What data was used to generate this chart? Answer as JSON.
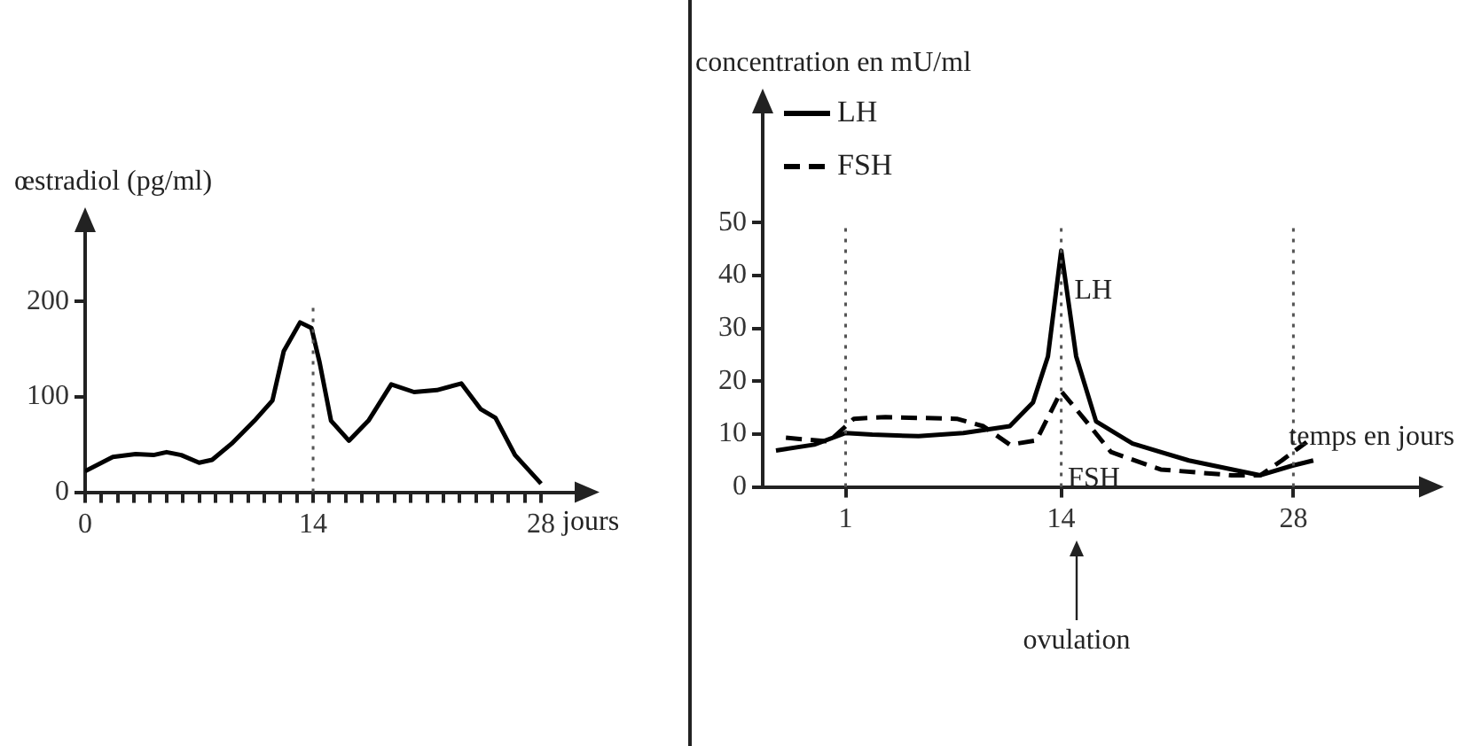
{
  "chart_data": [
    {
      "type": "line",
      "ylabel": "œstradiol (pg/ml)",
      "xlabel": "jours",
      "color": "#000000",
      "x": [
        0,
        1.7,
        3.1,
        4.2,
        5,
        5.9,
        7,
        7.8,
        9,
        10.4,
        11.5,
        12.2,
        13.2,
        13.9,
        14.4,
        15.1,
        16.2,
        17.4,
        18.8,
        20.2,
        21.6,
        23.1,
        24.3,
        25.2,
        26.4,
        28
      ],
      "values": [
        22,
        37,
        40,
        39,
        42,
        39,
        31,
        34,
        51,
        75,
        96,
        148,
        178,
        172,
        136,
        75,
        54,
        75,
        113,
        105,
        107,
        114,
        87,
        78,
        39,
        9
      ],
      "xlim": [
        0,
        30.5
      ],
      "xticks": [
        0,
        {
          "value": 1,
          "label": null
        },
        {
          "value": 2,
          "label": null
        },
        {
          "value": 3,
          "label": null
        },
        {
          "value": 4,
          "label": null
        },
        {
          "value": 5,
          "label": null
        },
        {
          "value": 6,
          "label": null
        },
        {
          "value": 7,
          "label": null
        },
        {
          "value": 8,
          "label": null
        },
        {
          "value": 9,
          "label": null
        },
        {
          "value": 10,
          "label": null
        },
        {
          "value": 11,
          "label": null
        },
        {
          "value": 12,
          "label": null
        },
        {
          "value": 13,
          "label": null
        },
        14,
        {
          "value": 15,
          "label": null
        },
        {
          "value": 16,
          "label": null
        },
        {
          "value": 17,
          "label": null
        },
        {
          "value": 18,
          "label": null
        },
        {
          "value": 19,
          "label": null
        },
        {
          "value": 20,
          "label": null
        },
        {
          "value": 21,
          "label": null
        },
        {
          "value": 22,
          "label": null
        },
        {
          "value": 23,
          "label": null
        },
        {
          "value": 24,
          "label": null
        },
        {
          "value": 25,
          "label": null
        },
        {
          "value": 26,
          "label": null
        },
        {
          "value": 27,
          "label": null
        },
        28
      ],
      "ylim": [
        0,
        280
      ],
      "yticks": [
        0,
        100,
        200
      ],
      "grid": false,
      "ref_lines": [
        {
          "axis": "x",
          "value": 14,
          "color": "#555555",
          "line_style": "dotted"
        }
      ]
    },
    {
      "type": "line",
      "ylabel": "concentration en mU/ml",
      "xlabel": "temps en jours",
      "legend": "top left",
      "grid": false,
      "series": [
        {
          "name": "LH",
          "color": "#000000",
          "line_style": "solid",
          "x": [
            -3.2,
            -0.9,
            1,
            2.6,
            5.4,
            8.1,
            10.9,
            12.3,
            13.2,
            14,
            14.9,
            16.1,
            18.3,
            21.7,
            26,
            27.9,
            29.2
          ],
          "values": [
            6.9,
            8,
            10.2,
            9.9,
            9.6,
            10.2,
            11.5,
            16,
            24.7,
            44.7,
            24.7,
            12.4,
            8.2,
            5,
            2.2,
            4,
            5
          ]
        },
        {
          "name": "FSH",
          "color": "#000000",
          "line_style": "dashed",
          "x": [
            -2.6,
            0,
            1.5,
            3.4,
            7.7,
            9.3,
            10.9,
            12.5,
            14,
            15.3,
            17,
            20,
            24.3,
            26,
            27.3,
            28.8
          ],
          "values": [
            9.3,
            8.6,
            12.9,
            13.2,
            12.9,
            11.5,
            8,
            8.8,
            18.1,
            13.2,
            6.6,
            3.3,
            2.2,
            2.2,
            5,
            8.5
          ]
        }
      ],
      "xlim": [
        -4,
        36
      ],
      "xticks": [
        1,
        14,
        28
      ],
      "ylim": [
        0,
        72
      ],
      "yticks": [
        0,
        10,
        20,
        30,
        40,
        50
      ],
      "ref_lines": [
        {
          "axis": "x",
          "value": 1,
          "color": "#555555",
          "line_style": "dotted"
        },
        {
          "axis": "x",
          "value": 14,
          "color": "#555555",
          "line_style": "dotted"
        },
        {
          "axis": "x",
          "value": 28,
          "color": "#555555",
          "line_style": "dotted"
        }
      ],
      "annotations": [
        {
          "text": "LH",
          "x": 14.8,
          "y": 37
        },
        {
          "text": "FSH",
          "x": 14.4,
          "y": 1.5
        },
        "ovulation"
      ]
    }
  ]
}
